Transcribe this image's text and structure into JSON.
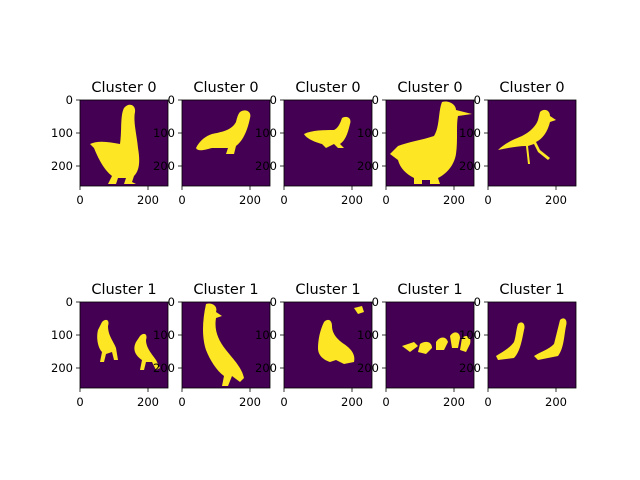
{
  "figure": {
    "mask_colors": {
      "background": "#440154",
      "foreground": "#fde725"
    },
    "axis": {
      "y_ticks": [
        "0",
        "100",
        "200"
      ],
      "x_ticks": [
        "0",
        "200"
      ]
    },
    "panels": [
      {
        "title": "Cluster 0",
        "mask": "goose-standing-profile"
      },
      {
        "title": "Cluster 0",
        "mask": "goose-crouching"
      },
      {
        "title": "Cluster 0",
        "mask": "duck-walking"
      },
      {
        "title": "Cluster 0",
        "mask": "large-goose-closeup"
      },
      {
        "title": "Cluster 0",
        "mask": "bird-walking-long-legs"
      },
      {
        "title": "Cluster 1",
        "mask": "two-geese-walking"
      },
      {
        "title": "Cluster 1",
        "mask": "goose-tall-standing"
      },
      {
        "title": "Cluster 1",
        "mask": "duck-sitting-with-fragment"
      },
      {
        "title": "Cluster 1",
        "mask": "row-of-ducks"
      },
      {
        "title": "Cluster 1",
        "mask": "two-geese-facing-right"
      }
    ]
  }
}
